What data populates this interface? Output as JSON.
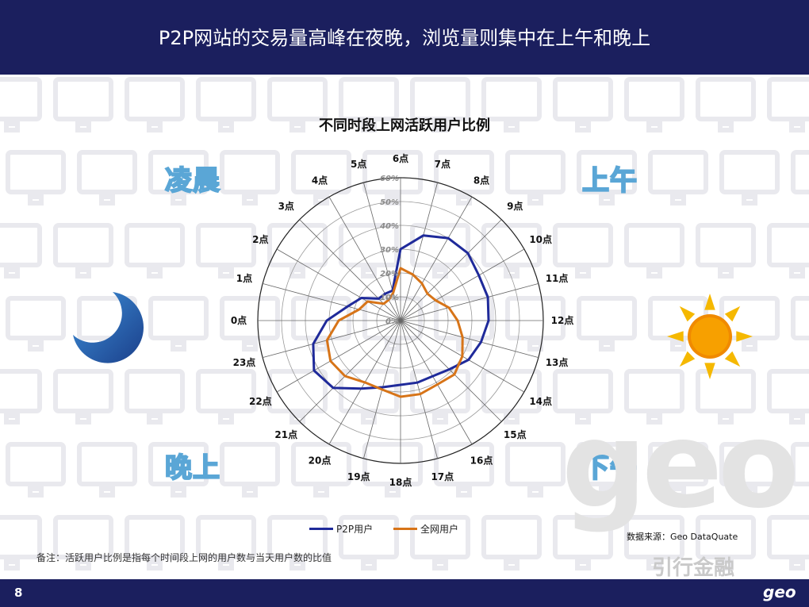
{
  "header": {
    "title": "P2P网站的交易量高峰在夜晚，浏览量则集中在上午和晚上"
  },
  "periods": {
    "early_morning": "凌晨",
    "morning": "上午",
    "night": "晚上",
    "afternoon": "下午"
  },
  "chart_data": {
    "type": "radar",
    "title": "不同时段上网活跃用户比例",
    "categories": [
      "6点",
      "7点",
      "8点",
      "9点",
      "10点",
      "11点",
      "12点",
      "13点",
      "14点",
      "15点",
      "16点",
      "17点",
      "18点",
      "19点",
      "20点",
      "21点",
      "22点",
      "23点",
      "0点",
      "1点",
      "2点",
      "3点",
      "4点",
      "5点"
    ],
    "radial_ticks": [
      "0%",
      "10%",
      "20%",
      "30%",
      "40%",
      "50%",
      "60%"
    ],
    "rmax": 60,
    "series": [
      {
        "name": "P2P用户",
        "color": "#1f2a9a",
        "values": [
          30,
          37,
          40,
          40,
          38,
          38,
          37,
          35,
          33,
          29,
          27,
          27,
          27,
          29,
          33,
          40,
          42,
          38,
          31,
          23,
          19,
          13,
          13,
          13
        ]
      },
      {
        "name": "全网用户",
        "color": "#d77418",
        "values": [
          22,
          20,
          18,
          16,
          17,
          21,
          24,
          27,
          30,
          32,
          31,
          32,
          32,
          30,
          30,
          33,
          34,
          32,
          26,
          18,
          16,
          10,
          10,
          12
        ]
      }
    ]
  },
  "source": "数据来源：Geo DataQuate",
  "note": "备注：活跃用户比例是指每个时间段上网的用户数与当天用户数的比值",
  "watermark": "引行金融",
  "footer": {
    "page_number": "8",
    "logo": "geo"
  },
  "colors": {
    "header_bg": "#1b1f5e",
    "p2p": "#1f2a9a",
    "all": "#d77418"
  }
}
